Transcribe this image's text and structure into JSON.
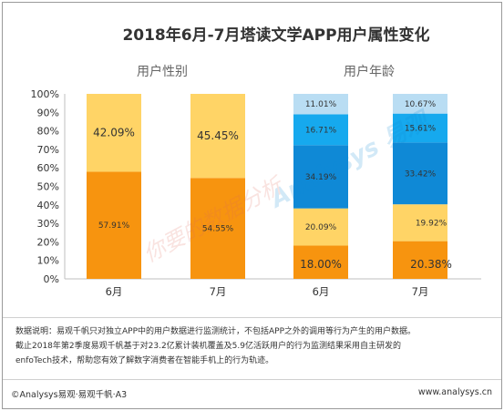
{
  "title": "2018年6月-7月塔读文学APP用户属性变化",
  "group_labels": [
    "用户性别",
    "用户年龄"
  ],
  "colors": {
    "orange": "#f7940f",
    "yellow": "#ffd466",
    "blue_dark": "#0f89d6",
    "blue_mid": "#16a9ee",
    "blue_light": "#b9ddf3",
    "axis": "#bfbfbf",
    "watermark": "#e06a5a"
  },
  "chart_data": [
    {
      "type": "bar",
      "stacked": true,
      "group": "用户性别",
      "categories": [
        "6月",
        "7月"
      ],
      "series": [
        {
          "values": [
            57.91,
            54.55
          ],
          "labels": [
            "57.91%",
            "54.55%"
          ],
          "color": "#f7940f"
        },
        {
          "values": [
            42.09,
            45.45
          ],
          "labels": [
            "42.09%",
            "45.45%"
          ],
          "color": "#ffd466"
        }
      ],
      "ylim": [
        0,
        100
      ],
      "yticks": [
        "0%",
        "10%",
        "20%",
        "30%",
        "40%",
        "50%",
        "60%",
        "70%",
        "80%",
        "90%",
        "100%"
      ]
    },
    {
      "type": "bar",
      "stacked": true,
      "group": "用户年龄",
      "categories": [
        "6月",
        "7月"
      ],
      "series": [
        {
          "values": [
            18.0,
            20.38
          ],
          "labels": [
            "18.00%",
            "20.38%"
          ],
          "color": "#f7940f"
        },
        {
          "values": [
            20.09,
            19.92
          ],
          "labels": [
            "20.09%",
            "19.92%"
          ],
          "color": "#ffd466"
        },
        {
          "values": [
            34.19,
            33.42
          ],
          "labels": [
            "34.19%",
            "33.42%"
          ],
          "color": "#0f89d6"
        },
        {
          "values": [
            16.71,
            15.61
          ],
          "labels": [
            "16.71%",
            "15.61%"
          ],
          "color": "#16a9ee"
        },
        {
          "values": [
            11.01,
            10.67
          ],
          "labels": [
            "11.01%",
            "10.67%"
          ],
          "color": "#b9ddf3"
        }
      ],
      "ylim": [
        0,
        100
      ]
    }
  ],
  "notes": [
    "数据说明：易观千帆只对独立APP中的用户数据进行监测统计，不包括APP之外的调用等行为产生的用户数据。",
    "截止2018年第2季度易观千帆基于对23.2亿累计装机覆盖及5.9亿活跃用户的行为监测结果采用自主研发的",
    "enfoTech技术，帮助您有效了解数字消费者在智能手机上的行为轨迹。"
  ],
  "footer": {
    "left": "©Analysys易观·易观千帆·A3",
    "right": "www.analysys.cn"
  },
  "watermark": {
    "text1": "Analysys 易观",
    "text2": "你要的数据分析"
  }
}
